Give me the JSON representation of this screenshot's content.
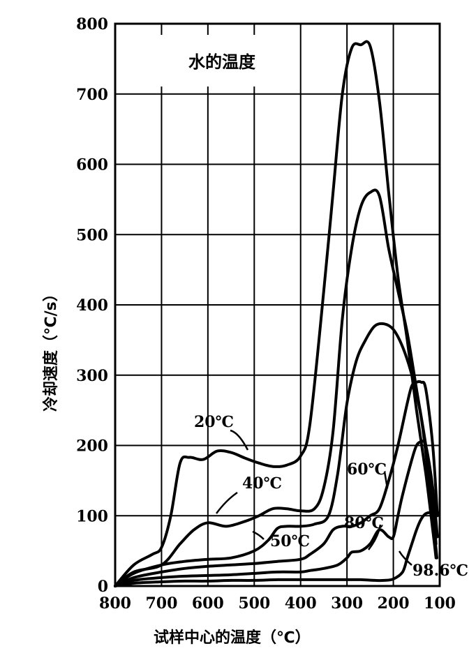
{
  "chart_data": {
    "type": "line",
    "title": "水的温度",
    "xlabel": "试样中心的温度（℃）",
    "ylabel": "冷却速度（℃/s）",
    "xlim": [
      800,
      100
    ],
    "ylim": [
      0,
      800
    ],
    "x_ticks": [
      "800",
      "700",
      "600",
      "500",
      "400",
      "300",
      "200",
      "100"
    ],
    "y_ticks": [
      "0",
      "100",
      "200",
      "300",
      "400",
      "500",
      "600",
      "700",
      "800"
    ],
    "grid": true,
    "series": [
      {
        "name": "20℃",
        "x": [
          800,
          760,
          720,
          700,
          680,
          660,
          640,
          610,
          580,
          550,
          520,
          490,
          460,
          430,
          400,
          380,
          350,
          330,
          310,
          290,
          270,
          250,
          230,
          210,
          190,
          170,
          150,
          130,
          115,
          108
        ],
        "y": [
          0,
          30,
          45,
          55,
          100,
          175,
          183,
          180,
          192,
          190,
          182,
          175,
          170,
          172,
          185,
          230,
          420,
          560,
          700,
          765,
          770,
          768,
          690,
          560,
          440,
          350,
          250,
          160,
          80,
          40
        ]
      },
      {
        "name": "40℃",
        "x": [
          800,
          760,
          700,
          660,
          630,
          600,
          560,
          520,
          490,
          460,
          430,
          400,
          370,
          350,
          330,
          310,
          290,
          270,
          250,
          230,
          210,
          190,
          170,
          150,
          130,
          115,
          108
        ],
        "y": [
          0,
          20,
          30,
          60,
          80,
          90,
          85,
          92,
          100,
          110,
          110,
          107,
          110,
          140,
          220,
          380,
          480,
          540,
          560,
          555,
          480,
          420,
          360,
          280,
          200,
          120,
          60
        ]
      },
      {
        "name": "50℃",
        "x": [
          800,
          760,
          700,
          650,
          600,
          550,
          500,
          470,
          450,
          430,
          400,
          370,
          340,
          320,
          300,
          280,
          260,
          240,
          220,
          200,
          180,
          160,
          140,
          125,
          112,
          106
        ],
        "y": [
          0,
          18,
          30,
          35,
          38,
          40,
          50,
          65,
          82,
          85,
          85,
          88,
          100,
          160,
          260,
          320,
          350,
          370,
          373,
          365,
          340,
          300,
          240,
          160,
          80,
          40
        ]
      },
      {
        "name": "60℃",
        "x": [
          800,
          760,
          700,
          650,
          600,
          550,
          500,
          450,
          400,
          380,
          350,
          330,
          310,
          290,
          270,
          250,
          230,
          210,
          190,
          170,
          160,
          150,
          140,
          130,
          115,
          105
        ],
        "y": [
          0,
          12,
          20,
          25,
          28,
          30,
          32,
          35,
          38,
          45,
          60,
          80,
          85,
          85,
          90,
          100,
          110,
          150,
          200,
          260,
          285,
          290,
          290,
          280,
          200,
          100
        ]
      },
      {
        "name": "80℃",
        "x": [
          800,
          760,
          700,
          650,
          600,
          550,
          500,
          450,
          400,
          380,
          350,
          320,
          300,
          290,
          270,
          250,
          230,
          210,
          200,
          190,
          180,
          160,
          150,
          140,
          130,
          115,
          105
        ],
        "y": [
          0,
          8,
          12,
          14,
          15,
          16,
          18,
          20,
          20,
          22,
          25,
          30,
          40,
          48,
          50,
          60,
          80,
          70,
          70,
          100,
          130,
          180,
          200,
          205,
          200,
          140,
          70
        ]
      },
      {
        "name": "98.6℃",
        "x": [
          800,
          760,
          700,
          650,
          600,
          550,
          500,
          450,
          400,
          350,
          300,
          270,
          240,
          220,
          200,
          180,
          170,
          160,
          150,
          140,
          130,
          115,
          105
        ],
        "y": [
          0,
          4,
          6,
          7,
          7,
          8,
          8,
          9,
          9,
          9,
          9,
          9,
          8,
          8,
          10,
          20,
          40,
          60,
          80,
          95,
          103,
          105,
          105
        ]
      }
    ]
  }
}
